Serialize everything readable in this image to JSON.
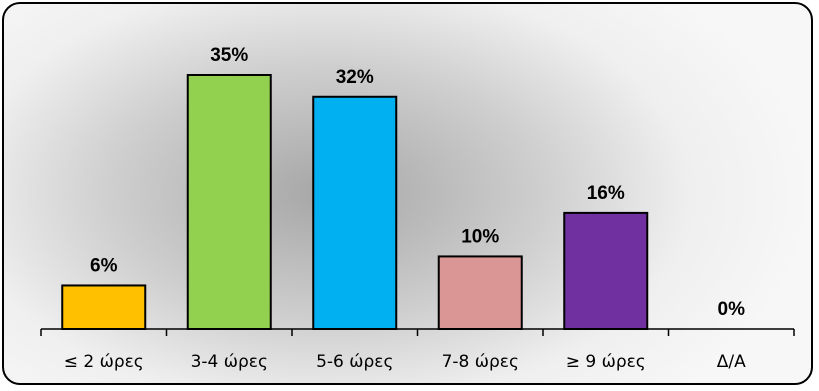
{
  "chart_data": {
    "type": "bar",
    "categories": [
      "≤ 2 ώρες",
      "3-4 ώρες",
      "5-6 ώρες",
      "7-8 ώρες",
      "≥ 9 ώρες",
      "Δ/Α"
    ],
    "values": [
      6,
      35,
      32,
      10,
      16,
      0
    ],
    "value_labels": [
      "6%",
      "35%",
      "32%",
      "10%",
      "16%",
      "0%"
    ],
    "colors": [
      "#ffc000",
      "#92d050",
      "#00b0f0",
      "#da9694",
      "#7030a0",
      "#7f7f7f"
    ],
    "title": "",
    "xlabel": "",
    "ylabel": "",
    "ylim": [
      0,
      40
    ],
    "grid": false,
    "legend": "none"
  }
}
